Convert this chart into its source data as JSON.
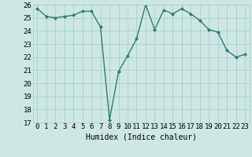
{
  "x": [
    0,
    1,
    2,
    3,
    4,
    5,
    6,
    7,
    8,
    9,
    10,
    11,
    12,
    13,
    14,
    15,
    16,
    17,
    18,
    19,
    20,
    21,
    22,
    23
  ],
  "y": [
    25.7,
    25.1,
    25.0,
    25.1,
    25.2,
    25.5,
    25.5,
    24.3,
    17.2,
    20.9,
    22.1,
    23.4,
    26.0,
    24.1,
    25.6,
    25.3,
    25.7,
    25.3,
    24.8,
    24.1,
    23.9,
    22.5,
    22.0,
    22.2
  ],
  "line_color": "#2e7d6e",
  "marker": "D",
  "marker_size": 2,
  "bg_color": "#cde8e4",
  "grid_color": "#aacdc9",
  "xlabel": "Humidex (Indice chaleur)",
  "ylim": [
    17,
    26
  ],
  "xlim": [
    -0.5,
    23.5
  ],
  "yticks": [
    17,
    18,
    19,
    20,
    21,
    22,
    23,
    24,
    25,
    26
  ],
  "xticks": [
    0,
    1,
    2,
    3,
    4,
    5,
    6,
    7,
    8,
    9,
    10,
    11,
    12,
    13,
    14,
    15,
    16,
    17,
    18,
    19,
    20,
    21,
    22,
    23
  ],
  "xlabel_fontsize": 7,
  "tick_fontsize": 6.5,
  "linewidth": 1.0
}
